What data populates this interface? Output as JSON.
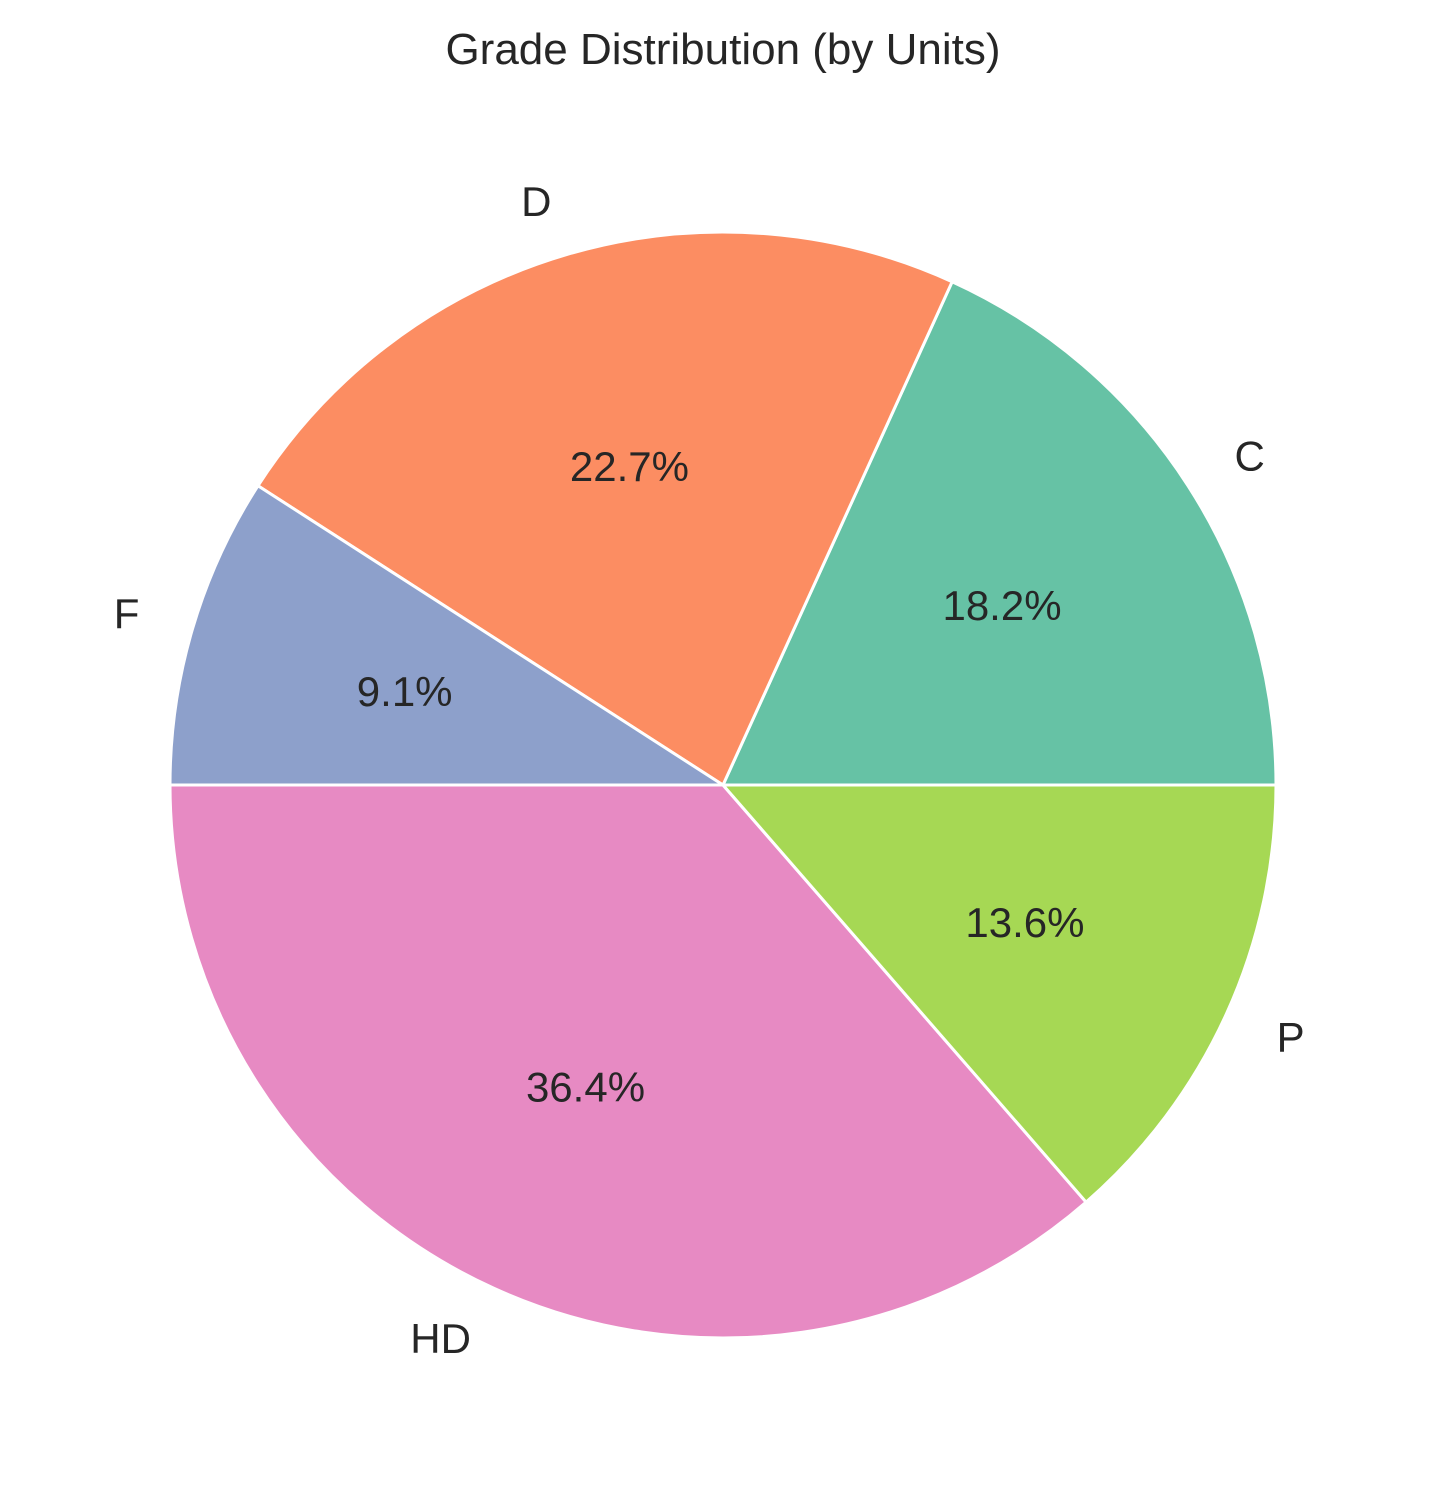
{
  "chart_data": {
    "type": "pie",
    "title": "Grade Distribution (by Units)",
    "start_angle_deg": 0,
    "direction": "counterclockwise",
    "slices": [
      {
        "label": "C",
        "value": 18.2,
        "percent_label": "18.2%",
        "color": "#66c2a5"
      },
      {
        "label": "D",
        "value": 22.7,
        "percent_label": "22.7%",
        "color": "#fc8d62"
      },
      {
        "label": "F",
        "value": 9.1,
        "percent_label": "9.1%",
        "color": "#8da0cb"
      },
      {
        "label": "HD",
        "value": 36.4,
        "percent_label": "36.4%",
        "color": "#e78ac3"
      },
      {
        "label": "P",
        "value": 13.6,
        "percent_label": "13.6%",
        "color": "#a6d854"
      }
    ],
    "slice_edge_color": "#ffffff"
  }
}
